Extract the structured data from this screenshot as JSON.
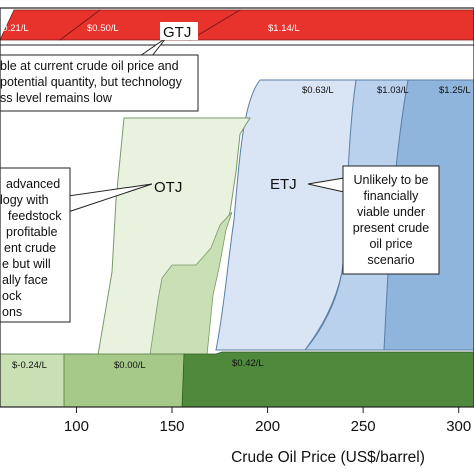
{
  "chart_data": {
    "type": "area",
    "xlabel": "Crude Oil Price (US$/barrel)",
    "x_ticks": [
      "100",
      "150",
      "200",
      "250",
      "300"
    ],
    "x_tick_values": [
      100,
      150,
      200,
      250,
      300
    ],
    "xlim": [
      60,
      308
    ],
    "regions": {
      "GTJ": {
        "label": "GTJ",
        "color": "#e8322c",
        "price_labels": [
          "$0.21/L",
          "$0.50/L",
          "$1.14/L"
        ]
      },
      "ETJ": {
        "label": "ETJ",
        "price_labels": [
          "$0.63/L",
          "$1.03/L",
          "$1.25/L"
        ],
        "colors": [
          "#d9e4f4",
          "#b9d1ec",
          "#8fb5dd"
        ]
      },
      "OTJ": {
        "label": "OTJ",
        "color": "#e9f2df"
      },
      "low_band": {
        "price_labels": [
          "$-0.24/L",
          "$0.00/L",
          "$0.42/L"
        ],
        "colors": [
          "#c9dfb4",
          "#a6c98a",
          "#4f8a3c"
        ]
      }
    },
    "callouts": {
      "gtj": [
        "ble at current crude oil price and",
        "potential quantity, but technology",
        "ss level remains low"
      ],
      "otj": [
        "advanced",
        "logy with",
        "feedstock",
        "profitable",
        "ent crude",
        "e but will",
        "ally  face",
        "ock",
        "ons"
      ],
      "etj": [
        "Unlikely to be",
        "financially",
        "viable under",
        "present crude",
        "oil price",
        "scenario"
      ]
    }
  }
}
